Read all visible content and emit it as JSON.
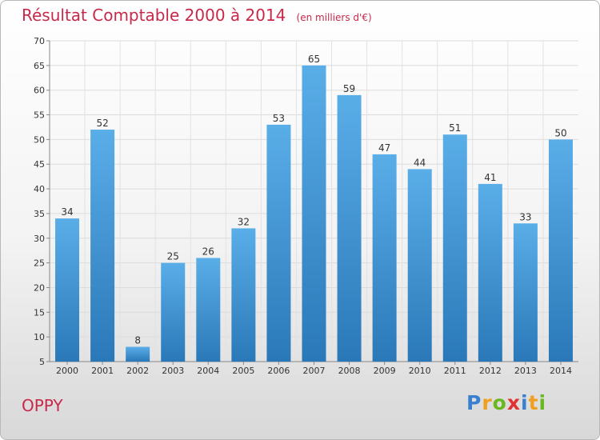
{
  "chart_data": {
    "type": "bar",
    "title": "Résultat Comptable 2000 à 2014",
    "subtitle": "(en milliers d'€)",
    "categories": [
      "2000",
      "2001",
      "2002",
      "2003",
      "2004",
      "2005",
      "2006",
      "2007",
      "2008",
      "2009",
      "2010",
      "2011",
      "2012",
      "2013",
      "2014"
    ],
    "values": [
      34,
      52,
      8,
      25,
      26,
      32,
      53,
      65,
      59,
      47,
      44,
      51,
      41,
      33,
      50
    ],
    "xlabel": "",
    "ylabel": "",
    "ylim": [
      5,
      70
    ],
    "yticks": [
      5,
      10,
      15,
      20,
      25,
      30,
      35,
      40,
      45,
      50,
      55,
      60,
      65,
      70
    ],
    "grid": true,
    "bar_color_top": "#5aaee8",
    "bar_color_bottom": "#2a78b8"
  },
  "town": "OPPY",
  "brand": {
    "letters": [
      "P",
      "r",
      "o",
      "x",
      "i",
      "t",
      "i"
    ],
    "colors": [
      "#3a7fd0",
      "#f0a020",
      "#6ab820",
      "#e03030",
      "#3a7fd0",
      "#f0a020",
      "#6ab820"
    ]
  },
  "colors": {
    "title": "#c8294a"
  }
}
